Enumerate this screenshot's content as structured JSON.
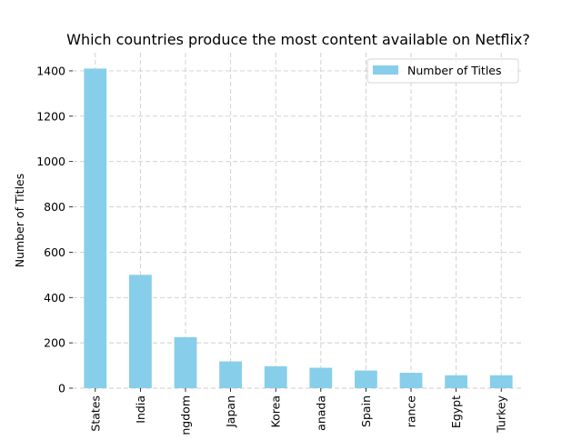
{
  "chart_data": {
    "type": "bar",
    "title": "Which countries produce the most content available on Netflix?",
    "xlabel": "",
    "ylabel": "Number of Titles",
    "categories": [
      "States",
      "India",
      "ngdom",
      "Japan",
      "Korea",
      "anada",
      "Spain",
      "rance",
      "Egypt",
      "Turkey"
    ],
    "series": [
      {
        "name": "Number of Titles",
        "values": [
          1410,
          500,
          225,
          118,
          97,
          90,
          78,
          68,
          57,
          57
        ]
      }
    ],
    "ylim": [
      0,
      1480
    ],
    "yticks": [
      0,
      200,
      400,
      600,
      800,
      1000,
      1200,
      1400
    ],
    "grid": true,
    "legend": "top-right",
    "colors": {
      "bar": "#87ceeb",
      "grid": "#cccccc",
      "text": "#000000"
    }
  }
}
